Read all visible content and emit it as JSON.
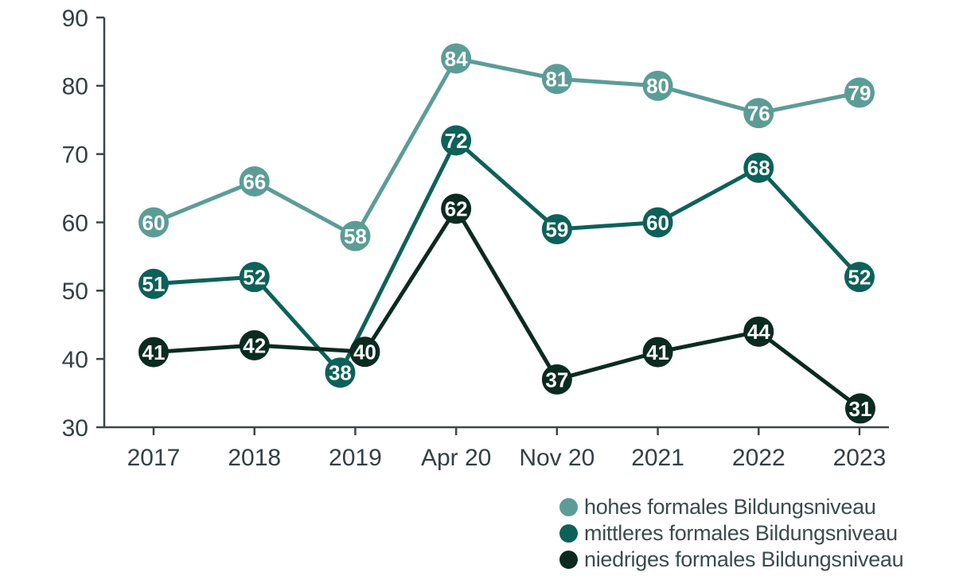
{
  "chart_data": {
    "type": "line",
    "title": "",
    "xlabel": "",
    "ylabel": "",
    "categories": [
      "2017",
      "2018",
      "2019",
      "Apr 20",
      "Nov 20",
      "2021",
      "2022",
      "2023"
    ],
    "series": [
      {
        "name": "hohes formales Bildungsniveau",
        "color": "#5C9C97",
        "values": [
          60,
          66,
          58,
          84,
          81,
          80,
          76,
          79
        ]
      },
      {
        "name": "mittleres formales Bildungsniveau",
        "color": "#0D6159",
        "values": [
          51,
          52,
          38,
          72,
          59,
          60,
          68,
          52
        ]
      },
      {
        "name": "niedriges formales Bildungsniveau",
        "color": "#0B2B20",
        "values": [
          41,
          42,
          40,
          62,
          37,
          41,
          44,
          31
        ]
      }
    ],
    "ylim": [
      30,
      90
    ],
    "yticks": [
      30,
      40,
      50,
      60,
      70,
      80,
      90
    ],
    "grid": false,
    "value_labels": "inside-circular-markers",
    "legend_position": "bottom-right",
    "axis_color": "#3A464A",
    "tick_label_color": "#333F43",
    "value_label_color": "#FFFFFF"
  }
}
